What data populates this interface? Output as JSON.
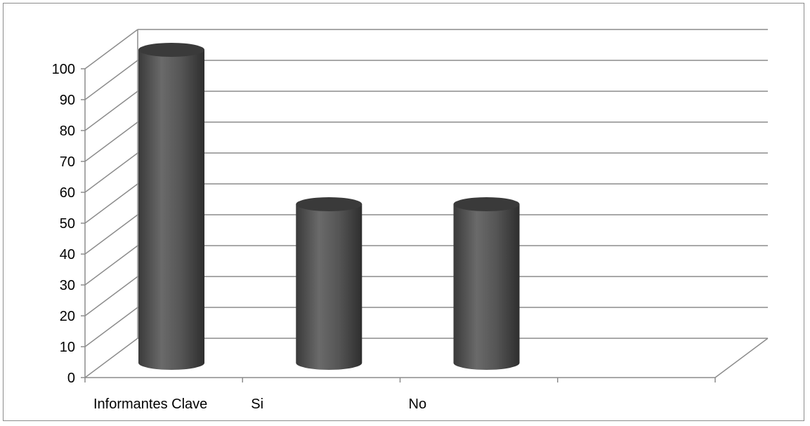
{
  "chart_data": {
    "type": "bar",
    "style": "3d-cylinder",
    "categories": [
      "Informantes Clave",
      "Si",
      "No"
    ],
    "values": [
      100,
      50,
      50
    ],
    "title": "",
    "xlabel": "",
    "ylabel": "",
    "ylim": [
      0,
      100
    ],
    "yticks": [
      0,
      10,
      20,
      30,
      40,
      50,
      60,
      70,
      80,
      90,
      100
    ],
    "ytick_labels": [
      "0",
      "10",
      "20",
      "30",
      "40",
      "50",
      "60",
      "70",
      "80",
      "90",
      "100"
    ],
    "grid": true,
    "legend": false,
    "colors": {
      "bar": "#4f4f4f",
      "bar_top": "#3a3a3a",
      "gridline": "#8c8c8c"
    }
  }
}
